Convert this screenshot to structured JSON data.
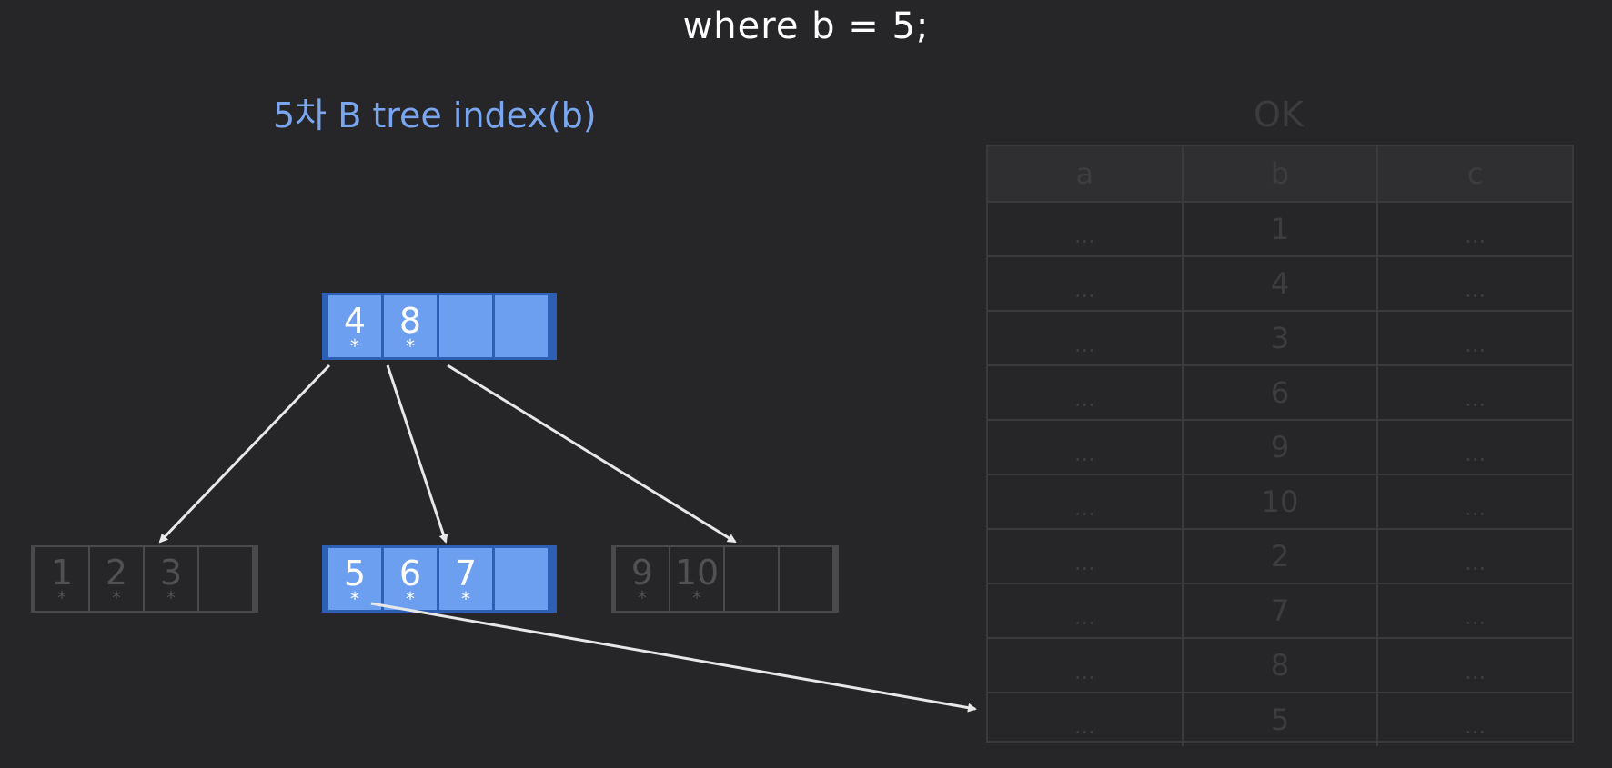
{
  "query": "where b = 5;",
  "tree_title": "5차 B tree index(b)",
  "table_title": "OK",
  "pointer_mark": "*",
  "colors": {
    "active_node": "#6d9ff0",
    "active_border": "#2d5fb4",
    "dim": "#4a4a4c",
    "arrow": "#e8e8e8"
  },
  "tree": {
    "root": {
      "keys": [
        "4",
        "8",
        "",
        ""
      ],
      "active": true
    },
    "leaves": [
      {
        "keys": [
          "1",
          "2",
          "3",
          ""
        ],
        "active": false
      },
      {
        "keys": [
          "5",
          "6",
          "7",
          ""
        ],
        "active": true
      },
      {
        "keys": [
          "9",
          "10",
          "",
          ""
        ],
        "active": false
      }
    ]
  },
  "table": {
    "columns": [
      "a",
      "b",
      "c"
    ],
    "rows": [
      [
        "...",
        "1",
        "..."
      ],
      [
        "...",
        "4",
        "..."
      ],
      [
        "...",
        "3",
        "..."
      ],
      [
        "...",
        "6",
        "..."
      ],
      [
        "...",
        "9",
        "..."
      ],
      [
        "...",
        "10",
        "..."
      ],
      [
        "...",
        "2",
        "..."
      ],
      [
        "...",
        "7",
        "..."
      ],
      [
        "...",
        "8",
        "..."
      ],
      [
        "...",
        "5",
        "..."
      ]
    ]
  }
}
